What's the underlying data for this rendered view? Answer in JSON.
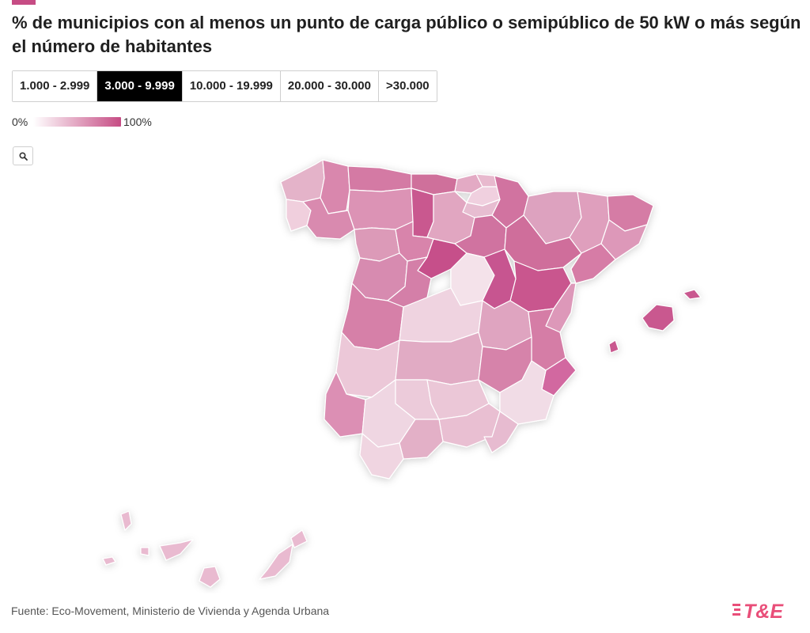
{
  "title": "% de municipios con al menos un punto de carga público o semipúblico de 50 kW o más según el número de habitantes",
  "tabs": [
    {
      "label": "1.000 - 2.999",
      "active": false
    },
    {
      "label": "3.000 - 9.999",
      "active": true
    },
    {
      "label": "10.000 - 19.999",
      "active": false
    },
    {
      "label": "20.000 - 30.000",
      "active": false
    },
    {
      "label": ">30.000",
      "active": false
    }
  ],
  "legend": {
    "min_label": "0%",
    "max_label": "100%",
    "color_min": "#ffffff",
    "color_max": "#c64c84"
  },
  "zoom_icon": "search-icon",
  "source": "Fuente: Eco-Movement, Ministerio de Vivienda y Agenda Urbana",
  "logo": {
    "text": "T&E",
    "color": "#e94e79"
  },
  "colors": {
    "accent": "#c64c84",
    "active_tab_bg": "#000000",
    "region_stroke": "#ffffff"
  }
}
